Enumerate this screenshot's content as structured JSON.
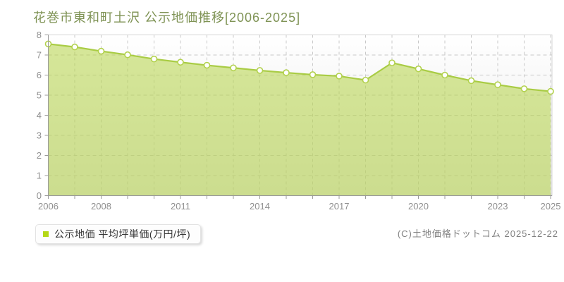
{
  "chart_data": {
    "type": "area",
    "title": "花巻市東和町土沢 公示地価推移[2006-2025]",
    "legend": "公示地価 平均坪単価(万円/坪)",
    "x": [
      2006,
      2007,
      2008,
      2009,
      2010,
      2011,
      2012,
      2013,
      2014,
      2015,
      2016,
      2017,
      2018,
      2019,
      2020,
      2021,
      2022,
      2023,
      2024,
      2025
    ],
    "values": [
      7.55,
      7.4,
      7.19,
      7.01,
      6.8,
      6.64,
      6.49,
      6.36,
      6.23,
      6.12,
      6.02,
      5.95,
      5.75,
      6.61,
      6.31,
      6.0,
      5.72,
      5.52,
      5.32,
      5.19
    ],
    "ylim": [
      0,
      8
    ],
    "yticks": [
      0,
      1,
      2,
      3,
      4,
      5,
      6,
      7,
      8
    ],
    "xtick_labels": [
      2006,
      2008,
      2011,
      2014,
      2017,
      2020,
      2023,
      2025
    ],
    "grid": "dashed",
    "legend_position": "bottom-left",
    "colors": {
      "title": "#7f9355",
      "line": "#a9cc44",
      "area_fill": "rgba(180,212,70,0.55)",
      "marker_fill": "#ffffff",
      "marker_stroke": "#b2d14d",
      "legend_marker": "#b4d816",
      "grid": "#c9c9c9",
      "axis": "#999999",
      "tick_label": "#8f8f8f",
      "plot_border": "#d5d5d5",
      "plot_bg_top": "#ffffff",
      "plot_bg_bottom": "#e8e8e8"
    }
  },
  "footer": {
    "copyright": "(C)土地価格ドットコム 2025-12-22"
  }
}
